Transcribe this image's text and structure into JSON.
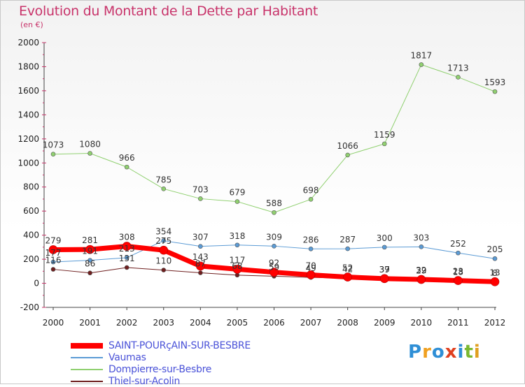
{
  "title": "Evolution du Montant de la Dette par Habitant",
  "subtitle": "(en €)",
  "brand": {
    "text": "Proxiti",
    "colors": [
      "#2f8fd6",
      "#f0a020",
      "#2f8fd6",
      "#e04020",
      "#2f8fd6",
      "#7ab830",
      "#e0a020"
    ]
  },
  "chart_data": {
    "type": "line",
    "x": [
      "2000",
      "2001",
      "2002",
      "2003",
      "2004",
      "2005",
      "2006",
      "2007",
      "2008",
      "2009",
      "2010",
      "2011",
      "2012"
    ],
    "ylim": [
      -200,
      2000
    ],
    "yticks": [
      -200,
      0,
      200,
      400,
      600,
      800,
      1000,
      1200,
      1400,
      1600,
      1800,
      2000
    ],
    "grid": false,
    "legend_position": "bottom-left",
    "series": [
      {
        "name": "Thiel-sur-Acolin",
        "color": "#6e1e1e",
        "width": 1,
        "values": [
          116,
          86,
          131,
          110,
          87,
          68,
          59,
          49,
          42,
          37,
          29,
          18,
          8
        ],
        "labels": [
          "116",
          "86",
          "131",
          "110",
          "87",
          "68",
          "59",
          "49",
          "42",
          "37",
          "29",
          "18",
          "8"
        ]
      },
      {
        "name": "Vaumas",
        "color": "#5b9bd5",
        "width": 1,
        "values": [
          177,
          191,
          213,
          354,
          307,
          318,
          309,
          286,
          287,
          300,
          303,
          252,
          205
        ],
        "labels": [
          "177",
          "191",
          "213",
          "354",
          "307",
          "318",
          "309",
          "286",
          "287",
          "300",
          "303",
          "252",
          "205"
        ]
      },
      {
        "name": "Dompierre-sur-Besbre",
        "color": "#90d070",
        "width": 1,
        "values": [
          1073,
          1080,
          966,
          785,
          703,
          679,
          588,
          698,
          1066,
          1159,
          1817,
          1713,
          1593
        ],
        "labels": [
          "1073",
          "1080",
          "966",
          "785",
          "703",
          "679",
          "588",
          "698",
          "1066",
          "1159",
          "1817",
          "1713",
          "1593"
        ]
      },
      {
        "name": "SAINT-POURçAIN-SUR-BESBRE",
        "color": "#ff0000",
        "width": 7,
        "values": [
          279,
          281,
          308,
          275,
          143,
          117,
          92,
          70,
          52,
          39,
          32,
          23,
          13
        ],
        "labels": [
          "279",
          "281",
          "308",
          "275",
          "143",
          "117",
          "92",
          "70",
          "52",
          "39",
          "32",
          "23",
          "13"
        ]
      }
    ],
    "legend": [
      {
        "name": "SAINT-POURçAIN-SUR-BESBRE",
        "color": "#ff0000",
        "width": 7
      },
      {
        "name": "Vaumas",
        "color": "#5b9bd5",
        "width": 1
      },
      {
        "name": "Dompierre-sur-Besbre",
        "color": "#90d070",
        "width": 1
      },
      {
        "name": "Thiel-sur-Acolin",
        "color": "#6e1e1e",
        "width": 1
      }
    ]
  }
}
